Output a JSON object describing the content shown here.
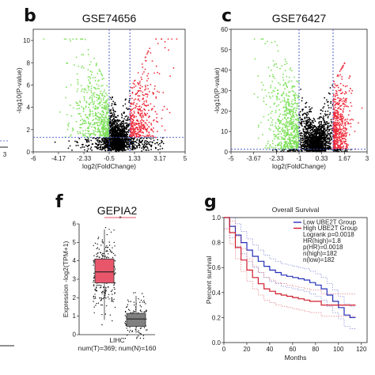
{
  "chart_data": [
    {
      "id": "b",
      "type": "scatter",
      "panel_label": "b",
      "title": "GSE74656",
      "xlabel": "log2(FoldChange)",
      "ylabel": "-log10(P-value)",
      "xlim": [
        -6,
        5
      ],
      "ylim": [
        0,
        11
      ],
      "xticks": [
        "-6",
        "-4.17",
        "-2.33",
        "-0.5",
        "1.33",
        "3.17",
        "5"
      ],
      "xtick_values": [
        -6,
        -4.17,
        -2.33,
        -0.5,
        1.33,
        3.17,
        5
      ],
      "yticks": [
        "0",
        "2",
        "4",
        "6",
        "8",
        "10"
      ],
      "ytick_values": [
        0,
        2,
        4,
        6,
        8,
        10
      ],
      "vlines": [
        -0.5,
        1.0
      ],
      "hline": 1.3,
      "colors": {
        "down": "#7ee05a",
        "up": "#ee2b3b",
        "ns": "#000000",
        "guide": "#3d50c8"
      }
    },
    {
      "id": "c",
      "type": "scatter",
      "panel_label": "c",
      "title": "GSE76427",
      "xlabel": "log2(FoldChange)",
      "ylabel": "-log10(P-value)",
      "xlim": [
        -5,
        3
      ],
      "ylim": [
        0,
        60
      ],
      "xticks": [
        "-5",
        "-3.67",
        "-2.33",
        "-1",
        "0.33",
        "1.67",
        "3"
      ],
      "xtick_values": [
        -5,
        -3.67,
        -2.33,
        -1,
        0.33,
        1.67,
        3
      ],
      "yticks": [
        "0",
        "10",
        "20",
        "30",
        "40",
        "50",
        "60"
      ],
      "ytick_values": [
        0,
        10,
        20,
        30,
        40,
        50,
        60
      ],
      "vlines": [
        -1.0,
        1.0
      ],
      "hline": 1.3,
      "colors": {
        "down": "#7ee05a",
        "up": "#ee2b3b",
        "ns": "#000000",
        "guide": "#3d50c8"
      }
    },
    {
      "id": "f",
      "type": "box",
      "panel_label": "f",
      "title": "GEPIA2",
      "ylabel": "Expression -log2(TPM+1)",
      "ylim": [
        0,
        6
      ],
      "yticks": [
        "0",
        "1",
        "2",
        "3",
        "4",
        "5",
        "6"
      ],
      "ytick_values": [
        0,
        1,
        2,
        3,
        4,
        5,
        6
      ],
      "category": "LIHC",
      "note": "num(T)=369; num(N)=160",
      "significance_mark": "*",
      "boxes": [
        {
          "group": "T",
          "q1": 2.8,
          "median": 3.4,
          "q3": 4.1,
          "min": 0.8,
          "max": 5.7,
          "color": "#e8566b",
          "n": 369
        },
        {
          "group": "N",
          "q1": 0.45,
          "median": 0.85,
          "q3": 1.15,
          "min": 0.1,
          "max": 2.1,
          "color": "#808080",
          "n": 160
        }
      ]
    },
    {
      "id": "g",
      "type": "line",
      "panel_label": "g",
      "title": "Overall Survival",
      "xlabel": "Months",
      "ylabel": "Percent survival",
      "xlim": [
        0,
        125
      ],
      "ylim": [
        0,
        1.0
      ],
      "xticks": [
        "0",
        "20",
        "40",
        "60",
        "80",
        "100",
        "120"
      ],
      "xtick_values": [
        0,
        20,
        40,
        60,
        80,
        100,
        120
      ],
      "yticks": [
        "0.0",
        "0.2",
        "0.4",
        "0.6",
        "0.8",
        "1.0"
      ],
      "ytick_values": [
        0,
        0.2,
        0.4,
        0.6,
        0.8,
        1.0
      ],
      "legend": [
        "Low UBE2T Group",
        "High UBE2T Group"
      ],
      "legend_placement": "top-right",
      "stats": [
        "Logrank p=0.0018",
        "HR(high)=1.8",
        "p(HR)=0.0018",
        "n(high)=182",
        "n(low)=182"
      ],
      "series": [
        {
          "name": "Low UBE2T Group",
          "color": "#2530b8",
          "x": [
            0,
            5,
            10,
            15,
            20,
            25,
            30,
            35,
            40,
            45,
            50,
            55,
            60,
            65,
            70,
            75,
            80,
            85,
            90,
            95,
            100,
            105,
            110,
            115
          ],
          "y": [
            1.0,
            0.93,
            0.86,
            0.8,
            0.74,
            0.69,
            0.65,
            0.61,
            0.58,
            0.56,
            0.54,
            0.53,
            0.52,
            0.51,
            0.5,
            0.48,
            0.46,
            0.43,
            0.38,
            0.33,
            0.28,
            0.22,
            0.2,
            0.2
          ]
        },
        {
          "name": "High UBE2T Group",
          "color": "#d01c2a",
          "x": [
            0,
            5,
            10,
            15,
            20,
            25,
            30,
            35,
            40,
            45,
            50,
            55,
            60,
            65,
            70,
            75,
            80,
            85,
            90,
            95,
            100,
            105,
            110,
            115
          ],
          "y": [
            1.0,
            0.88,
            0.76,
            0.66,
            0.58,
            0.52,
            0.47,
            0.43,
            0.41,
            0.39,
            0.38,
            0.37,
            0.36,
            0.35,
            0.34,
            0.33,
            0.33,
            0.3,
            0.3,
            0.3,
            0.3,
            0.3,
            0.3,
            0.3
          ]
        }
      ]
    }
  ]
}
